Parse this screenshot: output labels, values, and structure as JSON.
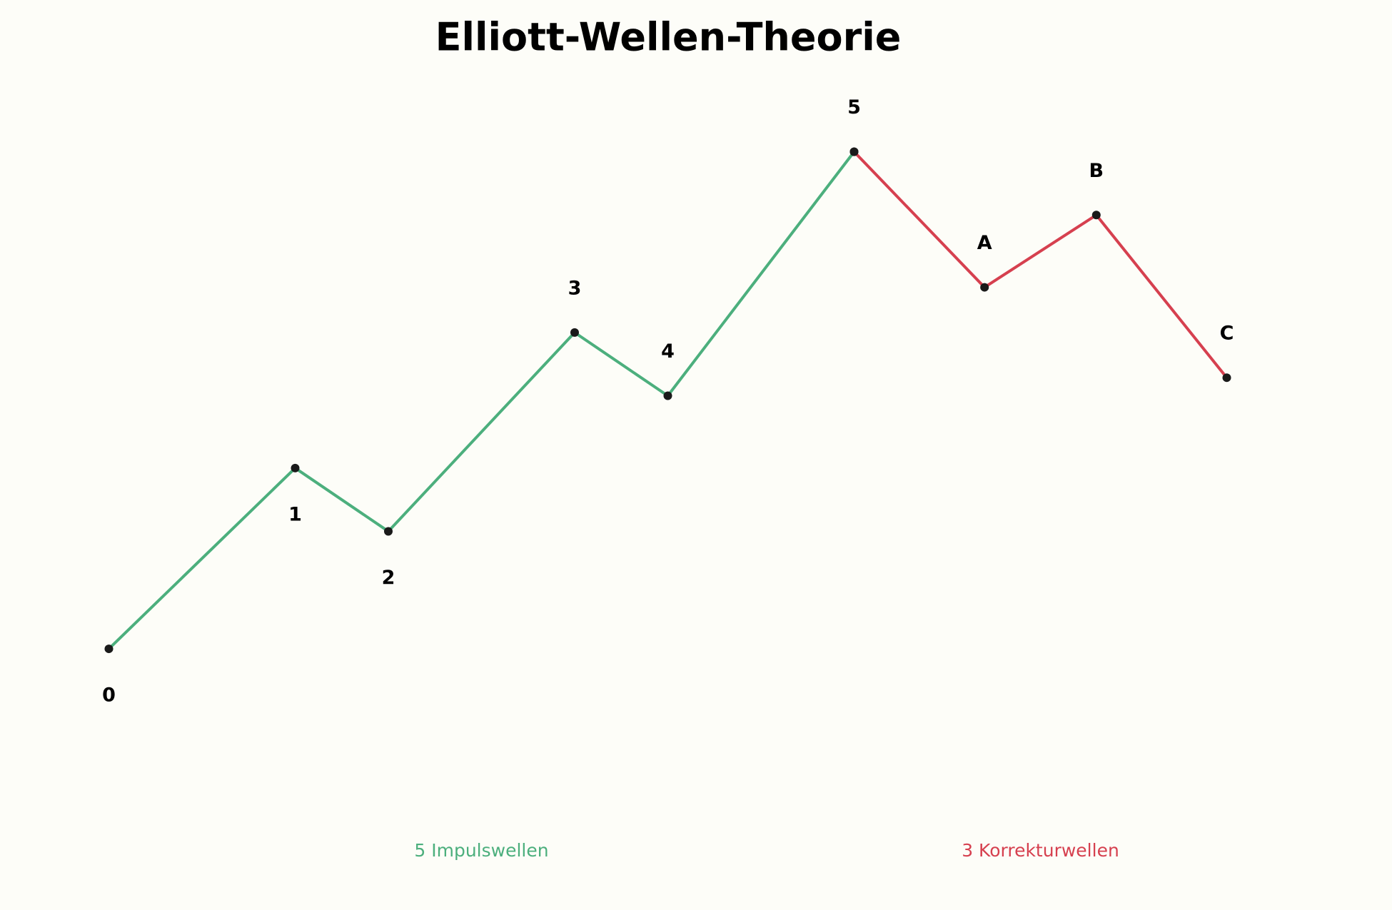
{
  "chart_data": {
    "type": "line",
    "title": "Elliott-Wellen-Theorie",
    "x": [
      0,
      2,
      3,
      5,
      6,
      8,
      9.4,
      10.6,
      12
    ],
    "point_labels": [
      "0",
      "1",
      "2",
      "3",
      "4",
      "5",
      "A",
      "B",
      "C"
    ],
    "xlim": [
      -1,
      13
    ],
    "ylim": [
      -1.5,
      6.5
    ],
    "series": [
      {
        "name": "5 Impulswellen",
        "color": "#4caf7d",
        "values": [
          0,
          2,
          1.3,
          3.5,
          2.8,
          5.5,
          null,
          null,
          null
        ]
      },
      {
        "name": "3 Korrekturwellen",
        "color": "#d6404f",
        "values": [
          null,
          null,
          null,
          null,
          null,
          5.5,
          4,
          4.8,
          3
        ]
      }
    ],
    "marker_color": "#1a1a1a"
  }
}
